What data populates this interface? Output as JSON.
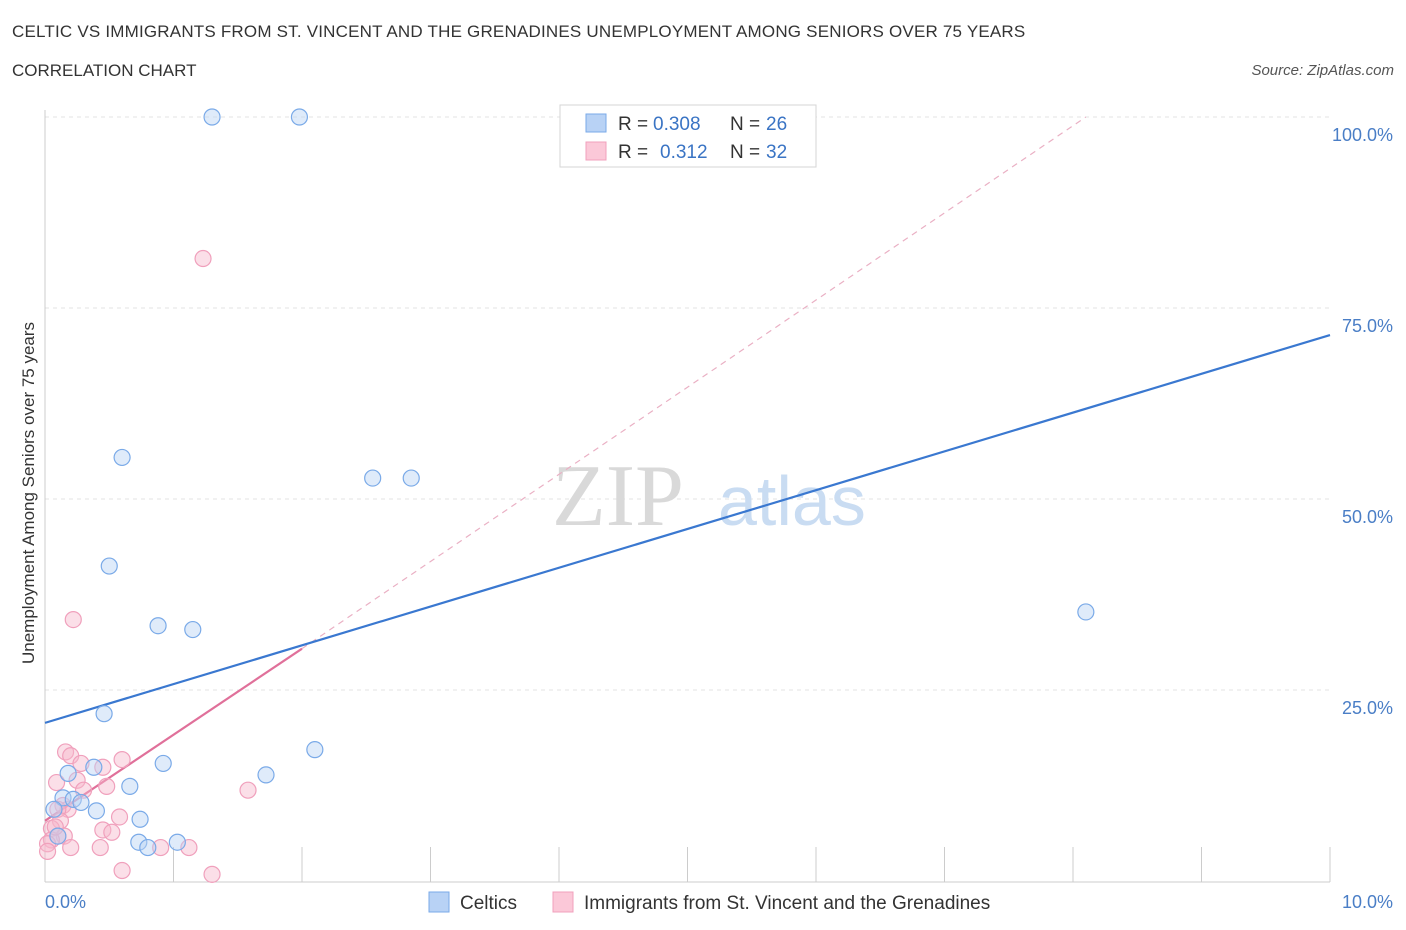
{
  "title": "CELTIC VS IMMIGRANTS FROM ST. VINCENT AND THE GRENADINES UNEMPLOYMENT AMONG SENIORS OVER 75 YEARS",
  "subtitle": "CORRELATION CHART",
  "source": "Source: ZipAtlas.com",
  "watermark": {
    "zip": "ZIP",
    "atlas": "atlas"
  },
  "legend": {
    "rows": [
      {
        "r_label": "R =",
        "r_value": "0.308",
        "n_label": "N =",
        "n_value": "26"
      },
      {
        "r_label": "R =",
        "r_value": "0.312",
        "n_label": "N =",
        "n_value": "32"
      }
    ]
  },
  "chart_data": {
    "type": "scatter",
    "title": "CELTIC VS IMMIGRANTS FROM ST. VINCENT AND THE GRENADINES UNEMPLOYMENT AMONG SENIORS OVER 75 YEARS",
    "xlabel": "",
    "ylabel": "Unemployment Among Seniors over 75 years",
    "xlim": [
      0,
      10
    ],
    "ylim": [
      0,
      100
    ],
    "x_tick_labels": [
      "0.0%",
      "10.0%"
    ],
    "y_ticks": [
      25,
      50,
      75,
      100
    ],
    "y_tick_labels": [
      "25.0%",
      "50.0%",
      "75.0%",
      "100.0%"
    ],
    "colors": {
      "celtics": "#7aaae8",
      "immigrants": "#f0a0bc",
      "celtics_line": "#3a78d0",
      "immigrants_line": "#e0709a"
    },
    "series": [
      {
        "name": "Celtics",
        "R": 0.308,
        "N": 26,
        "points": [
          [
            1.3,
            100
          ],
          [
            1.98,
            100
          ],
          [
            0.6,
            55.5
          ],
          [
            2.55,
            52.8
          ],
          [
            2.85,
            52.8
          ],
          [
            0.5,
            41.3
          ],
          [
            0.88,
            33.5
          ],
          [
            1.15,
            33.0
          ],
          [
            8.1,
            35.3
          ],
          [
            0.46,
            22.0
          ],
          [
            2.1,
            17.3
          ],
          [
            0.92,
            15.5
          ],
          [
            0.38,
            15.0
          ],
          [
            1.72,
            14.0
          ],
          [
            0.18,
            14.2
          ],
          [
            0.66,
            12.5
          ],
          [
            0.14,
            11.0
          ],
          [
            0.22,
            10.8
          ],
          [
            0.28,
            10.4
          ],
          [
            0.4,
            9.3
          ],
          [
            0.07,
            9.5
          ],
          [
            0.74,
            8.2
          ],
          [
            0.1,
            6.0
          ],
          [
            0.73,
            5.2
          ],
          [
            1.03,
            5.2
          ],
          [
            0.8,
            4.5
          ]
        ],
        "trend": {
          "x1": 0,
          "y1": 20.8,
          "x2": 10,
          "y2": 71.5
        }
      },
      {
        "name": "Immigrants from St. Vincent and the Grenadines",
        "R": 0.312,
        "N": 32,
        "points": [
          [
            1.23,
            81.5
          ],
          [
            0.22,
            34.3
          ],
          [
            0.16,
            17.0
          ],
          [
            0.2,
            16.5
          ],
          [
            0.6,
            16.0
          ],
          [
            0.28,
            15.5
          ],
          [
            0.45,
            15.0
          ],
          [
            0.09,
            13.0
          ],
          [
            0.25,
            13.3
          ],
          [
            0.48,
            12.5
          ],
          [
            1.58,
            12.0
          ],
          [
            0.3,
            12.0
          ],
          [
            0.14,
            10.0
          ],
          [
            0.18,
            9.5
          ],
          [
            0.1,
            9.5
          ],
          [
            0.58,
            8.5
          ],
          [
            0.12,
            8.0
          ],
          [
            0.05,
            7.0
          ],
          [
            0.45,
            6.8
          ],
          [
            0.52,
            6.5
          ],
          [
            0.1,
            6.0
          ],
          [
            0.15,
            6.0
          ],
          [
            0.05,
            5.5
          ],
          [
            0.02,
            5.0
          ],
          [
            0.2,
            4.5
          ],
          [
            0.43,
            4.5
          ],
          [
            0.9,
            4.5
          ],
          [
            1.12,
            4.5
          ],
          [
            0.02,
            4.0
          ],
          [
            0.6,
            1.5
          ],
          [
            1.3,
            1.0
          ],
          [
            0.08,
            7.2
          ]
        ],
        "trend": {
          "x1": 0,
          "y1": 8.0,
          "x2": 2.0,
          "y2": 30.5
        },
        "trend_extension": {
          "x1": 2.0,
          "y1": 30.5,
          "x2": 8.1,
          "y2": 100
        }
      }
    ]
  },
  "bottom_legend": {
    "items": [
      {
        "label": "Celtics"
      },
      {
        "label": "Immigrants from St. Vincent and the Grenadines"
      }
    ]
  }
}
